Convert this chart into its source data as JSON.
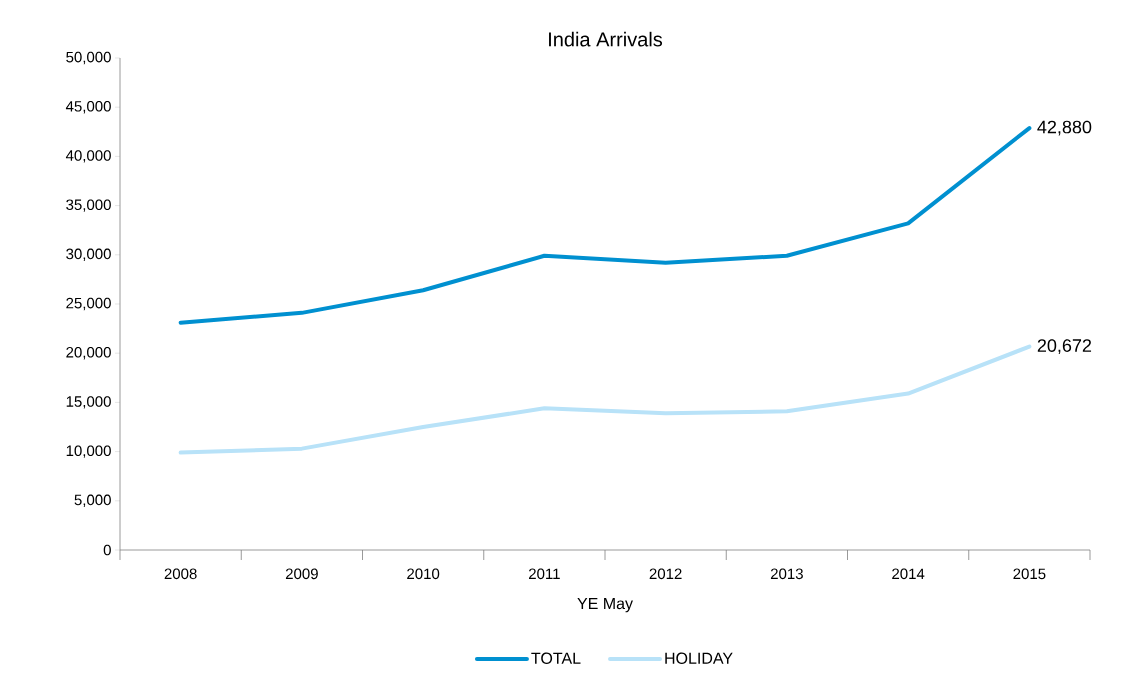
{
  "chart_data": {
    "type": "line",
    "title": "India Arrivals",
    "xlabel": "YE May",
    "categories": [
      "2008",
      "2009",
      "2010",
      "2011",
      "2012",
      "2013",
      "2014",
      "2015"
    ],
    "series": [
      {
        "name": "TOTAL",
        "color": "#0090d0",
        "values": [
          23100,
          24100,
          26400,
          29900,
          29200,
          29900,
          33200,
          42880
        ],
        "value_labels": [
          null,
          null,
          null,
          null,
          null,
          null,
          null,
          "42,880"
        ]
      },
      {
        "name": "HOLIDAY",
        "color": "#b8e2f8",
        "values": [
          9900,
          10300,
          12500,
          14400,
          13900,
          14100,
          15900,
          20672
        ],
        "value_labels": [
          null,
          null,
          null,
          null,
          null,
          null,
          null,
          "20,672"
        ]
      }
    ],
    "ylim": [
      0,
      50000
    ],
    "yticks": [
      {
        "value": 0,
        "label": "0"
      },
      {
        "value": 5000,
        "label": "5,000"
      },
      {
        "value": 10000,
        "label": "10,000"
      },
      {
        "value": 15000,
        "label": "15,000"
      },
      {
        "value": 20000,
        "label": "20,000"
      },
      {
        "value": 25000,
        "label": "25,000"
      },
      {
        "value": 30000,
        "label": "30,000"
      },
      {
        "value": 35000,
        "label": "35,000"
      },
      {
        "value": 40000,
        "label": "40,000"
      },
      {
        "value": 45000,
        "label": "45,000"
      },
      {
        "value": 50000,
        "label": "50,000"
      }
    ],
    "grid": false,
    "legend": "bottom",
    "marker": "none",
    "line_style": "solid"
  }
}
